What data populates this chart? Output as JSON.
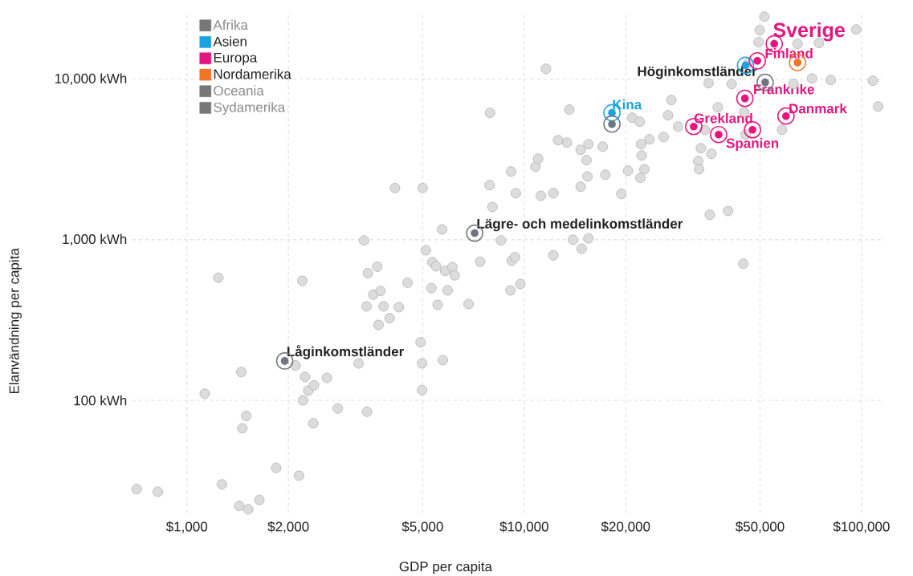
{
  "chart_data": {
    "type": "scatter",
    "xlabel": "GDP per capita",
    "ylabel": "Elanvändning per capita",
    "log": "xy",
    "grid": true,
    "legend": "top left",
    "marker": "circle",
    "xlim": [
      690,
      116000
    ],
    "ylim": [
      20,
      25000
    ],
    "xticks": [
      {
        "value": 1000,
        "label": "$1,000"
      },
      {
        "value": 2000,
        "label": "$2,000"
      },
      {
        "value": 5000,
        "label": "$5,000"
      },
      {
        "value": 10000,
        "label": "$10,000"
      },
      {
        "value": 20000,
        "label": "$20,000"
      },
      {
        "value": 50000,
        "label": "$50,000"
      },
      {
        "value": 100000,
        "label": "$100,000"
      }
    ],
    "yticks": [
      {
        "value": 100,
        "label": "100 kWh"
      },
      {
        "value": 1000,
        "label": "1,000 kWh"
      },
      {
        "value": 10000,
        "label": "10,000 kWh"
      }
    ],
    "series": [
      {
        "color": "#dcdcdc",
        "x": [
          710,
          820,
          1240,
          1130,
          1270,
          1450,
          1500,
          1460,
          1430,
          1520,
          1640,
          1840,
          2150,
          2200,
          2100,
          2240,
          2210,
          2290,
          2370,
          2600,
          2800,
          2380,
          3230,
          3420,
          3350,
          4140,
          5000,
          3440,
          3670,
          3570,
          3750,
          3410,
          3830,
          3700,
          3990,
          4250,
          4510,
          4930,
          4980,
          4980,
          5740,
          5110,
          5340,
          5480,
          5310,
          5540,
          5710,
          5830,
          5930,
          6120,
          6220,
          7400,
          8050,
          7900,
          9140,
          9180,
          9390,
          9740,
          9100,
          8530,
          9440,
          7920,
          11600,
          10800,
          11000,
          11200,
          12200,
          12600,
          13400,
          12200,
          13950,
          14700,
          15400,
          14800,
          15500,
          13600,
          14700,
          15300,
          15500,
          17100,
          17400,
          19400,
          20300,
          20900,
          22000,
          22200,
          22300,
          22700,
          22100,
          23500,
          25900,
          26700,
          27300,
          28600,
          32800,
          33000,
          33400,
          34300,
          35200,
          35900,
          35500,
          40200,
          37500,
          41200,
          44600,
          46300,
          49500,
          49900,
          51500,
          58100,
          64600,
          74800,
          71300,
          81000,
          96400,
          108000,
          112000,
          44900,
          45300,
          62800,
          6840
        ],
        "values": [
          28,
          27,
          580,
          110,
          30,
          150,
          80,
          67,
          22,
          21,
          24,
          38,
          34,
          555,
          165,
          140,
          100,
          115,
          72,
          138,
          89,
          124,
          170,
          85,
          990,
          2100,
          2100,
          620,
          680,
          455,
          480,
          385,
          385,
          295,
          325,
          380,
          540,
          230,
          170,
          116,
          178,
          860,
          725,
          684,
          500,
          394,
          1160,
          640,
          484,
          676,
          600,
          730,
          1600,
          2190,
          2660,
          740,
          780,
          530,
          484,
          990,
          1950,
          6170,
          11600,
          2850,
          3200,
          1880,
          1950,
          4170,
          4030,
          800,
          1000,
          2140,
          2480,
          880,
          1020,
          6460,
          3630,
          3130,
          3940,
          3800,
          2540,
          1930,
          2690,
          5750,
          5430,
          3940,
          3350,
          2750,
          2430,
          4220,
          4370,
          5960,
          7410,
          5070,
          3090,
          2750,
          3720,
          4840,
          9440,
          3430,
          1430,
          1510,
          6680,
          9330,
          710,
          12700,
          17000,
          20200,
          24500,
          4840,
          16600,
          16800,
          10100,
          9890,
          20400,
          9770,
          6760,
          6240,
          4520,
          9330,
          398
        ]
      },
      {
        "name": "Afrika",
        "color": "#777777"
      },
      {
        "name": "Asien",
        "color": "#1ba3e0",
        "x": [
          18200,
          45300
        ],
        "values": [
          6170,
          12200
        ]
      },
      {
        "name": "Europa",
        "color": "#e5157f",
        "x": [
          55100,
          49100,
          45100,
          47500,
          31800,
          37700,
          59700
        ],
        "values": [
          16600,
          13000,
          7590,
          4840,
          5070,
          4520,
          5890
        ]
      },
      {
        "name": "Nordamerika",
        "color": "#f07426",
        "x": [
          64600
        ],
        "values": [
          12700
        ]
      },
      {
        "name": "Oceania",
        "color": "#777777"
      },
      {
        "name": "Sydamerika",
        "color": "#777777"
      },
      {
        "color": "#6e7480",
        "x": [
          1950,
          7130,
          51800,
          18200
        ],
        "values": [
          176,
          1100,
          9550,
          5250
        ]
      }
    ],
    "annotations": [
      {
        "text": "Sverige",
        "x": 55100,
        "y": 16600
      },
      {
        "text": "Finland",
        "x": 49100,
        "y": 13000
      },
      {
        "text": "Höginkomstländer",
        "x": 51800,
        "y": 9550
      },
      {
        "text": "Kina",
        "x": 18200,
        "y": 6170
      },
      {
        "text": "Frankrike",
        "x": 45100,
        "y": 7590
      },
      {
        "text": "Spanien",
        "x": 47500,
        "y": 4840
      },
      {
        "text": "Grekland",
        "x": 31800,
        "y": 5070
      },
      {
        "text": "Danmark",
        "x": 59700,
        "y": 5890
      },
      {
        "text": "Lägre- och medelinkomstländer",
        "x": 7130,
        "y": 1100
      },
      {
        "text": "Låginkomstländer",
        "x": 1950,
        "y": 176
      }
    ]
  }
}
